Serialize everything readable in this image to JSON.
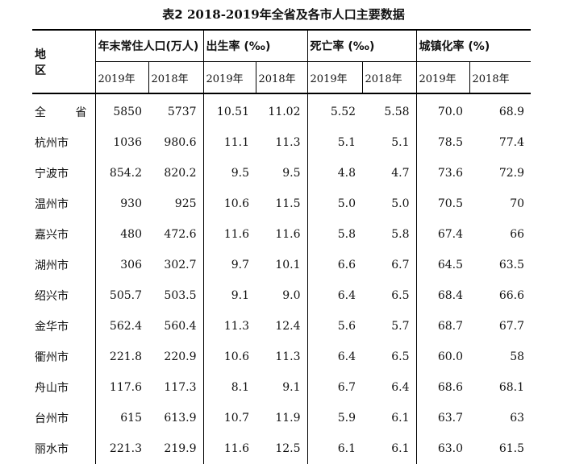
{
  "title": {
    "prefix": "表2",
    "years": "2018-2019",
    "text": "年全省及各市人口主要数据"
  },
  "header": {
    "region": "地 区",
    "groups": [
      "年末常住人口(万人)",
      "出生率 (‰)",
      "死亡率 (‰)",
      "城镇化率 (%)"
    ],
    "year_2019": "2019年",
    "year_2018": "2018年"
  },
  "rows": [
    {
      "name": "全 省",
      "values": [
        "5850",
        "5737",
        "10.51",
        "11.02",
        "5.52",
        "5.58",
        "70.0",
        "68.9"
      ]
    },
    {
      "name": "杭州市",
      "values": [
        "1036",
        "980.6",
        "11.1",
        "11.3",
        "5.1",
        "5.1",
        "78.5",
        "77.4"
      ]
    },
    {
      "name": "宁波市",
      "values": [
        "854.2",
        "820.2",
        "9.5",
        "9.5",
        "4.8",
        "4.7",
        "73.6",
        "72.9"
      ]
    },
    {
      "name": "温州市",
      "values": [
        "930",
        "925",
        "10.6",
        "11.5",
        "5.0",
        "5.0",
        "70.5",
        "70"
      ]
    },
    {
      "name": "嘉兴市",
      "values": [
        "480",
        "472.6",
        "11.6",
        "11.6",
        "5.8",
        "5.8",
        "67.4",
        "66"
      ]
    },
    {
      "name": "湖州市",
      "values": [
        "306",
        "302.7",
        "9.7",
        "10.1",
        "6.6",
        "6.7",
        "64.5",
        "63.5"
      ]
    },
    {
      "name": "绍兴市",
      "values": [
        "505.7",
        "503.5",
        "9.1",
        "9.0",
        "6.4",
        "6.5",
        "68.4",
        "66.6"
      ]
    },
    {
      "name": "金华市",
      "values": [
        "562.4",
        "560.4",
        "11.3",
        "12.4",
        "5.6",
        "5.7",
        "68.7",
        "67.7"
      ]
    },
    {
      "name": "衢州市",
      "values": [
        "221.8",
        "220.9",
        "10.6",
        "11.3",
        "6.4",
        "6.5",
        "60.0",
        "58"
      ]
    },
    {
      "name": "舟山市",
      "values": [
        "117.6",
        "117.3",
        "8.1",
        "9.1",
        "6.7",
        "6.4",
        "68.6",
        "68.1"
      ]
    },
    {
      "name": "台州市",
      "values": [
        "615",
        "613.9",
        "10.7",
        "11.9",
        "5.9",
        "6.1",
        "63.7",
        "63"
      ]
    },
    {
      "name": "丽水市",
      "values": [
        "221.3",
        "219.9",
        "11.6",
        "12.5",
        "6.1",
        "6.1",
        "63.0",
        "61.5"
      ]
    }
  ]
}
